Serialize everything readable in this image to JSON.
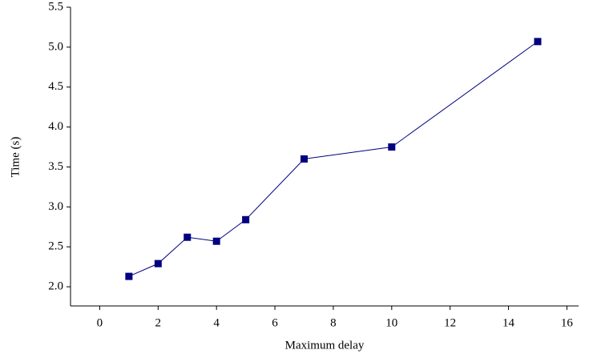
{
  "chart_data": {
    "type": "line",
    "xlabel": "Maximum delay",
    "ylabel": "Time (s)",
    "x": [
      1,
      2,
      3,
      4,
      5,
      7,
      10,
      15
    ],
    "series": [
      {
        "color": "#000080",
        "values": [
          2.13,
          2.29,
          2.62,
          2.57,
          2.84,
          3.6,
          3.75,
          5.07
        ]
      }
    ],
    "xlim": [
      -1,
      16.4
    ],
    "xticks": [
      0,
      2,
      4,
      6,
      8,
      10,
      12,
      14,
      16
    ],
    "ylim": [
      1.76,
      5.5
    ],
    "yticks": [
      {
        "value": 2,
        "label": "2.0"
      },
      2.5,
      {
        "value": 3,
        "label": "3.0"
      },
      3.5,
      {
        "value": 4,
        "label": "4.0"
      },
      4.5,
      {
        "value": 5,
        "label": "5.0"
      },
      5.5
    ]
  }
}
